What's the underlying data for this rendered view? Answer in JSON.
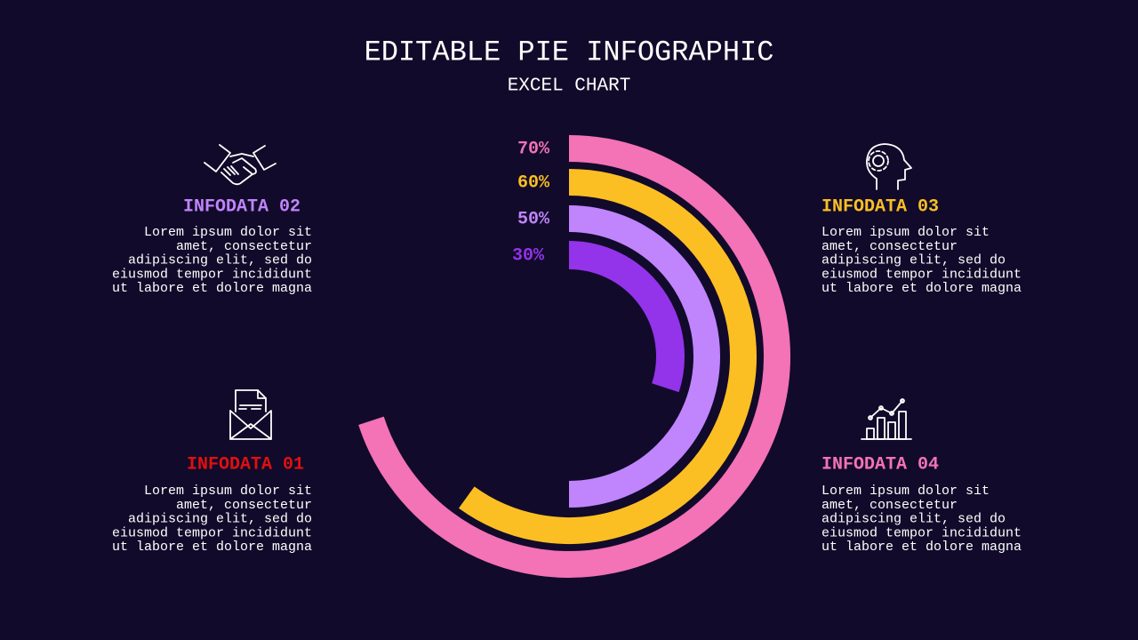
{
  "chart_data": {
    "type": "radial-bar",
    "title": "EDITABLE PIE INFOGRAPHIC",
    "subtitle": "EXCEL CHART",
    "values": [
      70,
      60,
      50,
      30
    ],
    "value_labels": [
      "70%",
      "60%",
      "50%",
      "30%"
    ],
    "colors": [
      "#f472b6",
      "#fbbf24",
      "#c084fc",
      "#9333ea"
    ]
  },
  "infoboxes": [
    {
      "title": "INFODATA 02",
      "color": "#c084fc",
      "lines": [
        "Lorem ipsum dolor sit",
        "amet, consectetur",
        "adipiscing elit, sed do",
        "eiusmod tempor incididunt",
        "ut labore et dolore magna"
      ]
    },
    {
      "title": "INFODATA 03",
      "color": "#fbbf24",
      "lines": [
        "Lorem ipsum dolor sit",
        "amet, consectetur",
        "adipiscing elit, sed do",
        "eiusmod tempor incididunt",
        "ut labore et dolore magna"
      ]
    },
    {
      "title": "INFODATA 01",
      "color": "#e01010",
      "lines": [
        "Lorem ipsum dolor sit",
        "amet, consectetur",
        "adipiscing elit, sed do",
        "eiusmod tempor incididunt",
        "ut labore et dolore magna"
      ]
    },
    {
      "title": "INFODATA 04",
      "color": "#f472b6",
      "lines": [
        "Lorem ipsum dolor sit",
        "amet, consectetur",
        "adipiscing elit, sed do",
        "eiusmod tempor incididunt",
        "ut labore et dolore magna"
      ]
    }
  ]
}
